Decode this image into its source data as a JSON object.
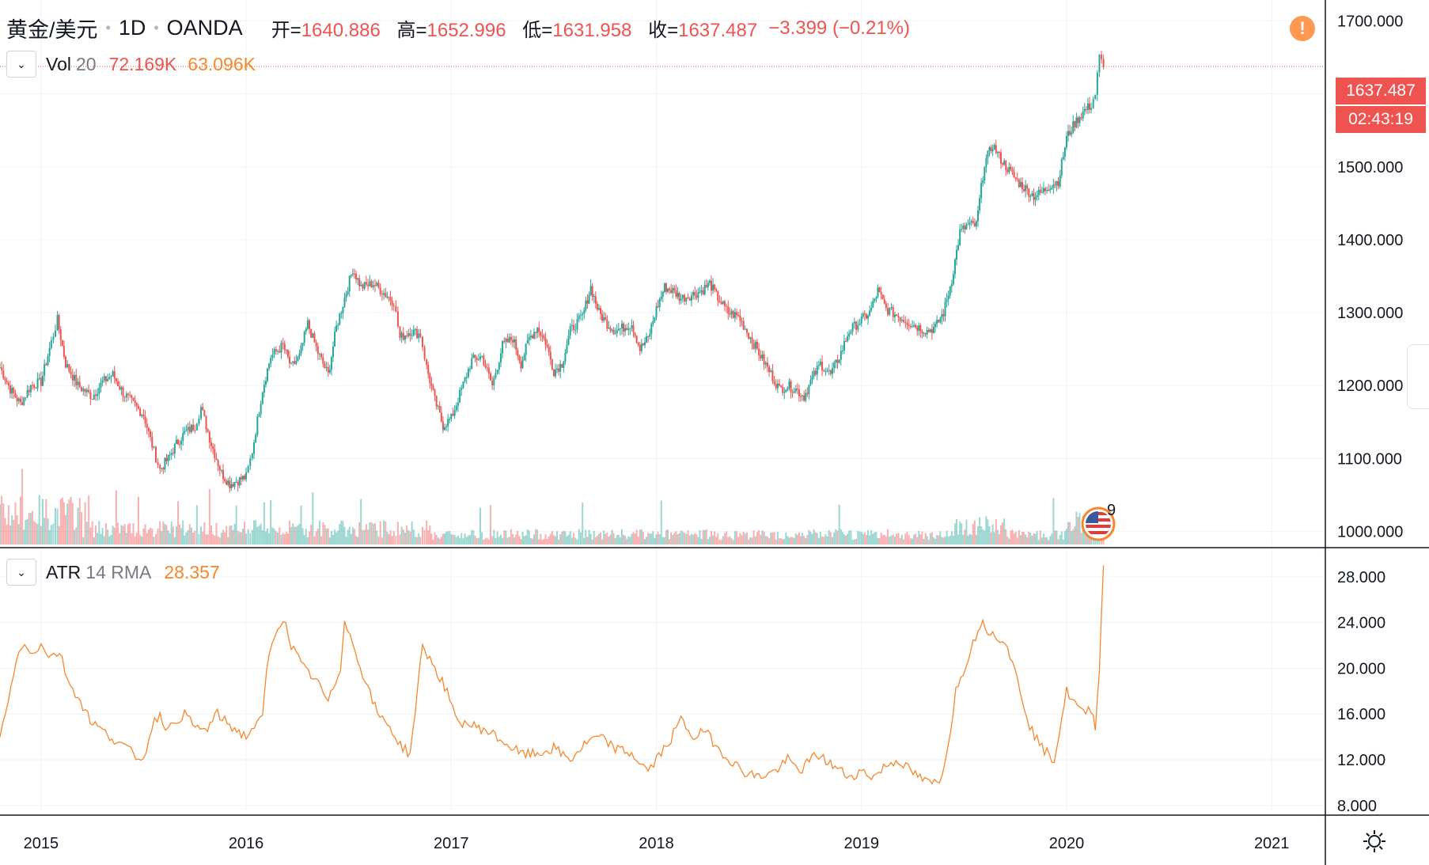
{
  "legend": {
    "symbol": "黄金/美元",
    "interval": "1D",
    "broker": "OANDA",
    "open_label": "开=",
    "open": "1640.886",
    "high_label": "高=",
    "high": "1652.996",
    "low_label": "低=",
    "low": "1631.958",
    "close_label": "收=",
    "close": "1637.487",
    "change": "−3.399 (−0.21%)"
  },
  "volume": {
    "name": "Vol",
    "param": "20",
    "value1": "72.169K",
    "value2": "63.096K"
  },
  "atr": {
    "name": "ATR",
    "param": "14 RMA",
    "value": "28.357"
  },
  "price_tag": {
    "price": "1637.487",
    "countdown": "02:43:19"
  },
  "event": {
    "count": "9"
  },
  "colors": {
    "up": "#26a69a",
    "down": "#ef5350",
    "atr_line": "#f5872c",
    "alert": "#ff9850"
  },
  "chart_data": [
    {
      "type": "candlestick",
      "title": "",
      "ylim": [
        980,
        1720
      ],
      "y_ticks": [
        "1000.000",
        "1100.000",
        "1200.000",
        "1300.000",
        "1400.000",
        "1500.000",
        "1600.000",
        "1700.000"
      ],
      "x_ticks": [
        "2015",
        "2016",
        "2017",
        "2018",
        "2019",
        "2020",
        "2021"
      ],
      "x_range": [
        2014.8,
        2021.25
      ],
      "last_price": 1637.487,
      "grid": true,
      "series": [
        {
          "name": "",
          "points": [
            [
              2014.8,
              1225
            ],
            [
              2014.85,
              1195
            ],
            [
              2014.9,
              1175
            ],
            [
              2014.95,
              1200
            ],
            [
              2015.0,
              1205
            ],
            [
              2015.05,
              1260
            ],
            [
              2015.08,
              1290
            ],
            [
              2015.12,
              1230
            ],
            [
              2015.18,
              1200
            ],
            [
              2015.25,
              1185
            ],
            [
              2015.3,
              1205
            ],
            [
              2015.35,
              1215
            ],
            [
              2015.4,
              1190
            ],
            [
              2015.45,
              1175
            ],
            [
              2015.5,
              1160
            ],
            [
              2015.55,
              1110
            ],
            [
              2015.58,
              1085
            ],
            [
              2015.62,
              1100
            ],
            [
              2015.66,
              1120
            ],
            [
              2015.7,
              1135
            ],
            [
              2015.75,
              1145
            ],
            [
              2015.78,
              1170
            ],
            [
              2015.83,
              1120
            ],
            [
              2015.88,
              1080
            ],
            [
              2015.92,
              1065
            ],
            [
              2015.96,
              1070
            ],
            [
              2016.0,
              1075
            ],
            [
              2016.03,
              1110
            ],
            [
              2016.08,
              1195
            ],
            [
              2016.12,
              1240
            ],
            [
              2016.18,
              1255
            ],
            [
              2016.22,
              1225
            ],
            [
              2016.26,
              1240
            ],
            [
              2016.3,
              1285
            ],
            [
              2016.35,
              1245
            ],
            [
              2016.4,
              1215
            ],
            [
              2016.44,
              1280
            ],
            [
              2016.48,
              1320
            ],
            [
              2016.52,
              1360
            ],
            [
              2016.56,
              1335
            ],
            [
              2016.62,
              1340
            ],
            [
              2016.68,
              1325
            ],
            [
              2016.72,
              1315
            ],
            [
              2016.75,
              1265
            ],
            [
              2016.8,
              1275
            ],
            [
              2016.85,
              1270
            ],
            [
              2016.88,
              1225
            ],
            [
              2016.92,
              1180
            ],
            [
              2016.96,
              1145
            ],
            [
              2017.0,
              1155
            ],
            [
              2017.05,
              1195
            ],
            [
              2017.1,
              1235
            ],
            [
              2017.15,
              1240
            ],
            [
              2017.2,
              1200
            ],
            [
              2017.25,
              1255
            ],
            [
              2017.3,
              1265
            ],
            [
              2017.34,
              1230
            ],
            [
              2017.38,
              1265
            ],
            [
              2017.42,
              1280
            ],
            [
              2017.46,
              1260
            ],
            [
              2017.5,
              1220
            ],
            [
              2017.54,
              1230
            ],
            [
              2017.58,
              1275
            ],
            [
              2017.64,
              1295
            ],
            [
              2017.68,
              1335
            ],
            [
              2017.72,
              1300
            ],
            [
              2017.76,
              1285
            ],
            [
              2017.8,
              1275
            ],
            [
              2017.84,
              1280
            ],
            [
              2017.88,
              1285
            ],
            [
              2017.92,
              1250
            ],
            [
              2017.96,
              1265
            ],
            [
              2018.0,
              1305
            ],
            [
              2018.04,
              1335
            ],
            [
              2018.08,
              1330
            ],
            [
              2018.12,
              1320
            ],
            [
              2018.18,
              1325
            ],
            [
              2018.22,
              1330
            ],
            [
              2018.26,
              1340
            ],
            [
              2018.3,
              1320
            ],
            [
              2018.35,
              1300
            ],
            [
              2018.4,
              1295
            ],
            [
              2018.45,
              1270
            ],
            [
              2018.5,
              1245
            ],
            [
              2018.55,
              1220
            ],
            [
              2018.6,
              1195
            ],
            [
              2018.64,
              1200
            ],
            [
              2018.68,
              1195
            ],
            [
              2018.72,
              1185
            ],
            [
              2018.76,
              1210
            ],
            [
              2018.8,
              1230
            ],
            [
              2018.85,
              1215
            ],
            [
              2018.9,
              1245
            ],
            [
              2018.94,
              1275
            ],
            [
              2019.0,
              1290
            ],
            [
              2019.04,
              1300
            ],
            [
              2019.08,
              1330
            ],
            [
              2019.12,
              1305
            ],
            [
              2019.18,
              1295
            ],
            [
              2019.24,
              1285
            ],
            [
              2019.28,
              1280
            ],
            [
              2019.32,
              1275
            ],
            [
              2019.36,
              1280
            ],
            [
              2019.4,
              1300
            ],
            [
              2019.44,
              1345
            ],
            [
              2019.48,
              1410
            ],
            [
              2019.52,
              1420
            ],
            [
              2019.56,
              1420
            ],
            [
              2019.6,
              1505
            ],
            [
              2019.64,
              1530
            ],
            [
              2019.68,
              1510
            ],
            [
              2019.72,
              1495
            ],
            [
              2019.76,
              1480
            ],
            [
              2019.8,
              1470
            ],
            [
              2019.84,
              1460
            ],
            [
              2019.88,
              1465
            ],
            [
              2019.92,
              1475
            ],
            [
              2019.96,
              1480
            ],
            [
              2020.0,
              1540
            ],
            [
              2020.04,
              1560
            ],
            [
              2020.08,
              1575
            ],
            [
              2020.12,
              1585
            ],
            [
              2020.14,
              1600
            ],
            [
              2020.16,
              1650
            ],
            [
              2020.18,
              1637
            ]
          ]
        }
      ]
    },
    {
      "type": "bar",
      "title": "",
      "note": "volume",
      "series": [
        {
          "name": "",
          "values_ratio_summary": "high early 2015, moderate spikes 2016, low 2018-2019, rising late 2019-2020"
        }
      ]
    },
    {
      "type": "line",
      "title": "",
      "ylim": [
        7.5,
        30
      ],
      "y_ticks": [
        "8.000",
        "12.000",
        "16.000",
        "20.000",
        "24.000",
        "28.000"
      ],
      "x_range": [
        2014.8,
        2021.25
      ],
      "series": [
        {
          "name": "",
          "points": [
            [
              2014.8,
              14
            ],
            [
              2014.84,
              17
            ],
            [
              2014.88,
              21
            ],
            [
              2014.92,
              22
            ],
            [
              2014.96,
              21.5
            ],
            [
              2015.0,
              22
            ],
            [
              2015.05,
              21
            ],
            [
              2015.09,
              21.5
            ],
            [
              2015.13,
              19
            ],
            [
              2015.18,
              17.5
            ],
            [
              2015.24,
              15.5
            ],
            [
              2015.3,
              14.5
            ],
            [
              2015.38,
              13.5
            ],
            [
              2015.45,
              12.5
            ],
            [
              2015.5,
              12.0
            ],
            [
              2015.54,
              15
            ],
            [
              2015.58,
              16
            ],
            [
              2015.62,
              14.5
            ],
            [
              2015.66,
              15.5
            ],
            [
              2015.7,
              16
            ],
            [
              2015.74,
              15
            ],
            [
              2015.8,
              14.5
            ],
            [
              2015.86,
              16
            ],
            [
              2015.92,
              15
            ],
            [
              2016.0,
              14
            ],
            [
              2016.04,
              15
            ],
            [
              2016.08,
              15.5
            ],
            [
              2016.1,
              20
            ],
            [
              2016.14,
              23
            ],
            [
              2016.18,
              24.5
            ],
            [
              2016.22,
              22
            ],
            [
              2016.28,
              20
            ],
            [
              2016.34,
              19
            ],
            [
              2016.4,
              17
            ],
            [
              2016.46,
              20
            ],
            [
              2016.48,
              24.5
            ],
            [
              2016.52,
              22
            ],
            [
              2016.58,
              19
            ],
            [
              2016.64,
              16
            ],
            [
              2016.7,
              15
            ],
            [
              2016.74,
              13.5
            ],
            [
              2016.8,
              12.5
            ],
            [
              2016.86,
              22
            ],
            [
              2016.92,
              20
            ],
            [
              2016.98,
              18
            ],
            [
              2017.02,
              15.5
            ],
            [
              2017.1,
              15
            ],
            [
              2017.18,
              14.5
            ],
            [
              2017.26,
              13.5
            ],
            [
              2017.34,
              12.5
            ],
            [
              2017.42,
              12.5
            ],
            [
              2017.5,
              13
            ],
            [
              2017.58,
              12
            ],
            [
              2017.66,
              13.5
            ],
            [
              2017.72,
              14
            ],
            [
              2017.8,
              13
            ],
            [
              2017.88,
              12.5
            ],
            [
              2017.96,
              11
            ],
            [
              2018.0,
              12
            ],
            [
              2018.06,
              13.5
            ],
            [
              2018.12,
              15.5
            ],
            [
              2018.18,
              14
            ],
            [
              2018.24,
              14.5
            ],
            [
              2018.3,
              13
            ],
            [
              2018.36,
              12
            ],
            [
              2018.42,
              11
            ],
            [
              2018.5,
              10.5
            ],
            [
              2018.58,
              11
            ],
            [
              2018.64,
              12
            ],
            [
              2018.7,
              11
            ],
            [
              2018.78,
              12.5
            ],
            [
              2018.86,
              11.5
            ],
            [
              2018.94,
              10.5
            ],
            [
              2019.0,
              11
            ],
            [
              2019.06,
              10.5
            ],
            [
              2019.12,
              11.5
            ],
            [
              2019.18,
              12
            ],
            [
              2019.24,
              11
            ],
            [
              2019.32,
              10
            ],
            [
              2019.38,
              10
            ],
            [
              2019.42,
              13
            ],
            [
              2019.46,
              18
            ],
            [
              2019.52,
              21
            ],
            [
              2019.58,
              24
            ],
            [
              2019.64,
              23
            ],
            [
              2019.7,
              22.5
            ],
            [
              2019.76,
              19
            ],
            [
              2019.82,
              15
            ],
            [
              2019.88,
              13
            ],
            [
              2019.94,
              12
            ],
            [
              2020.0,
              18
            ],
            [
              2020.04,
              17
            ],
            [
              2020.08,
              16
            ],
            [
              2020.12,
              16.5
            ],
            [
              2020.14,
              15
            ],
            [
              2020.16,
              20
            ],
            [
              2020.18,
              29
            ]
          ]
        }
      ]
    }
  ]
}
